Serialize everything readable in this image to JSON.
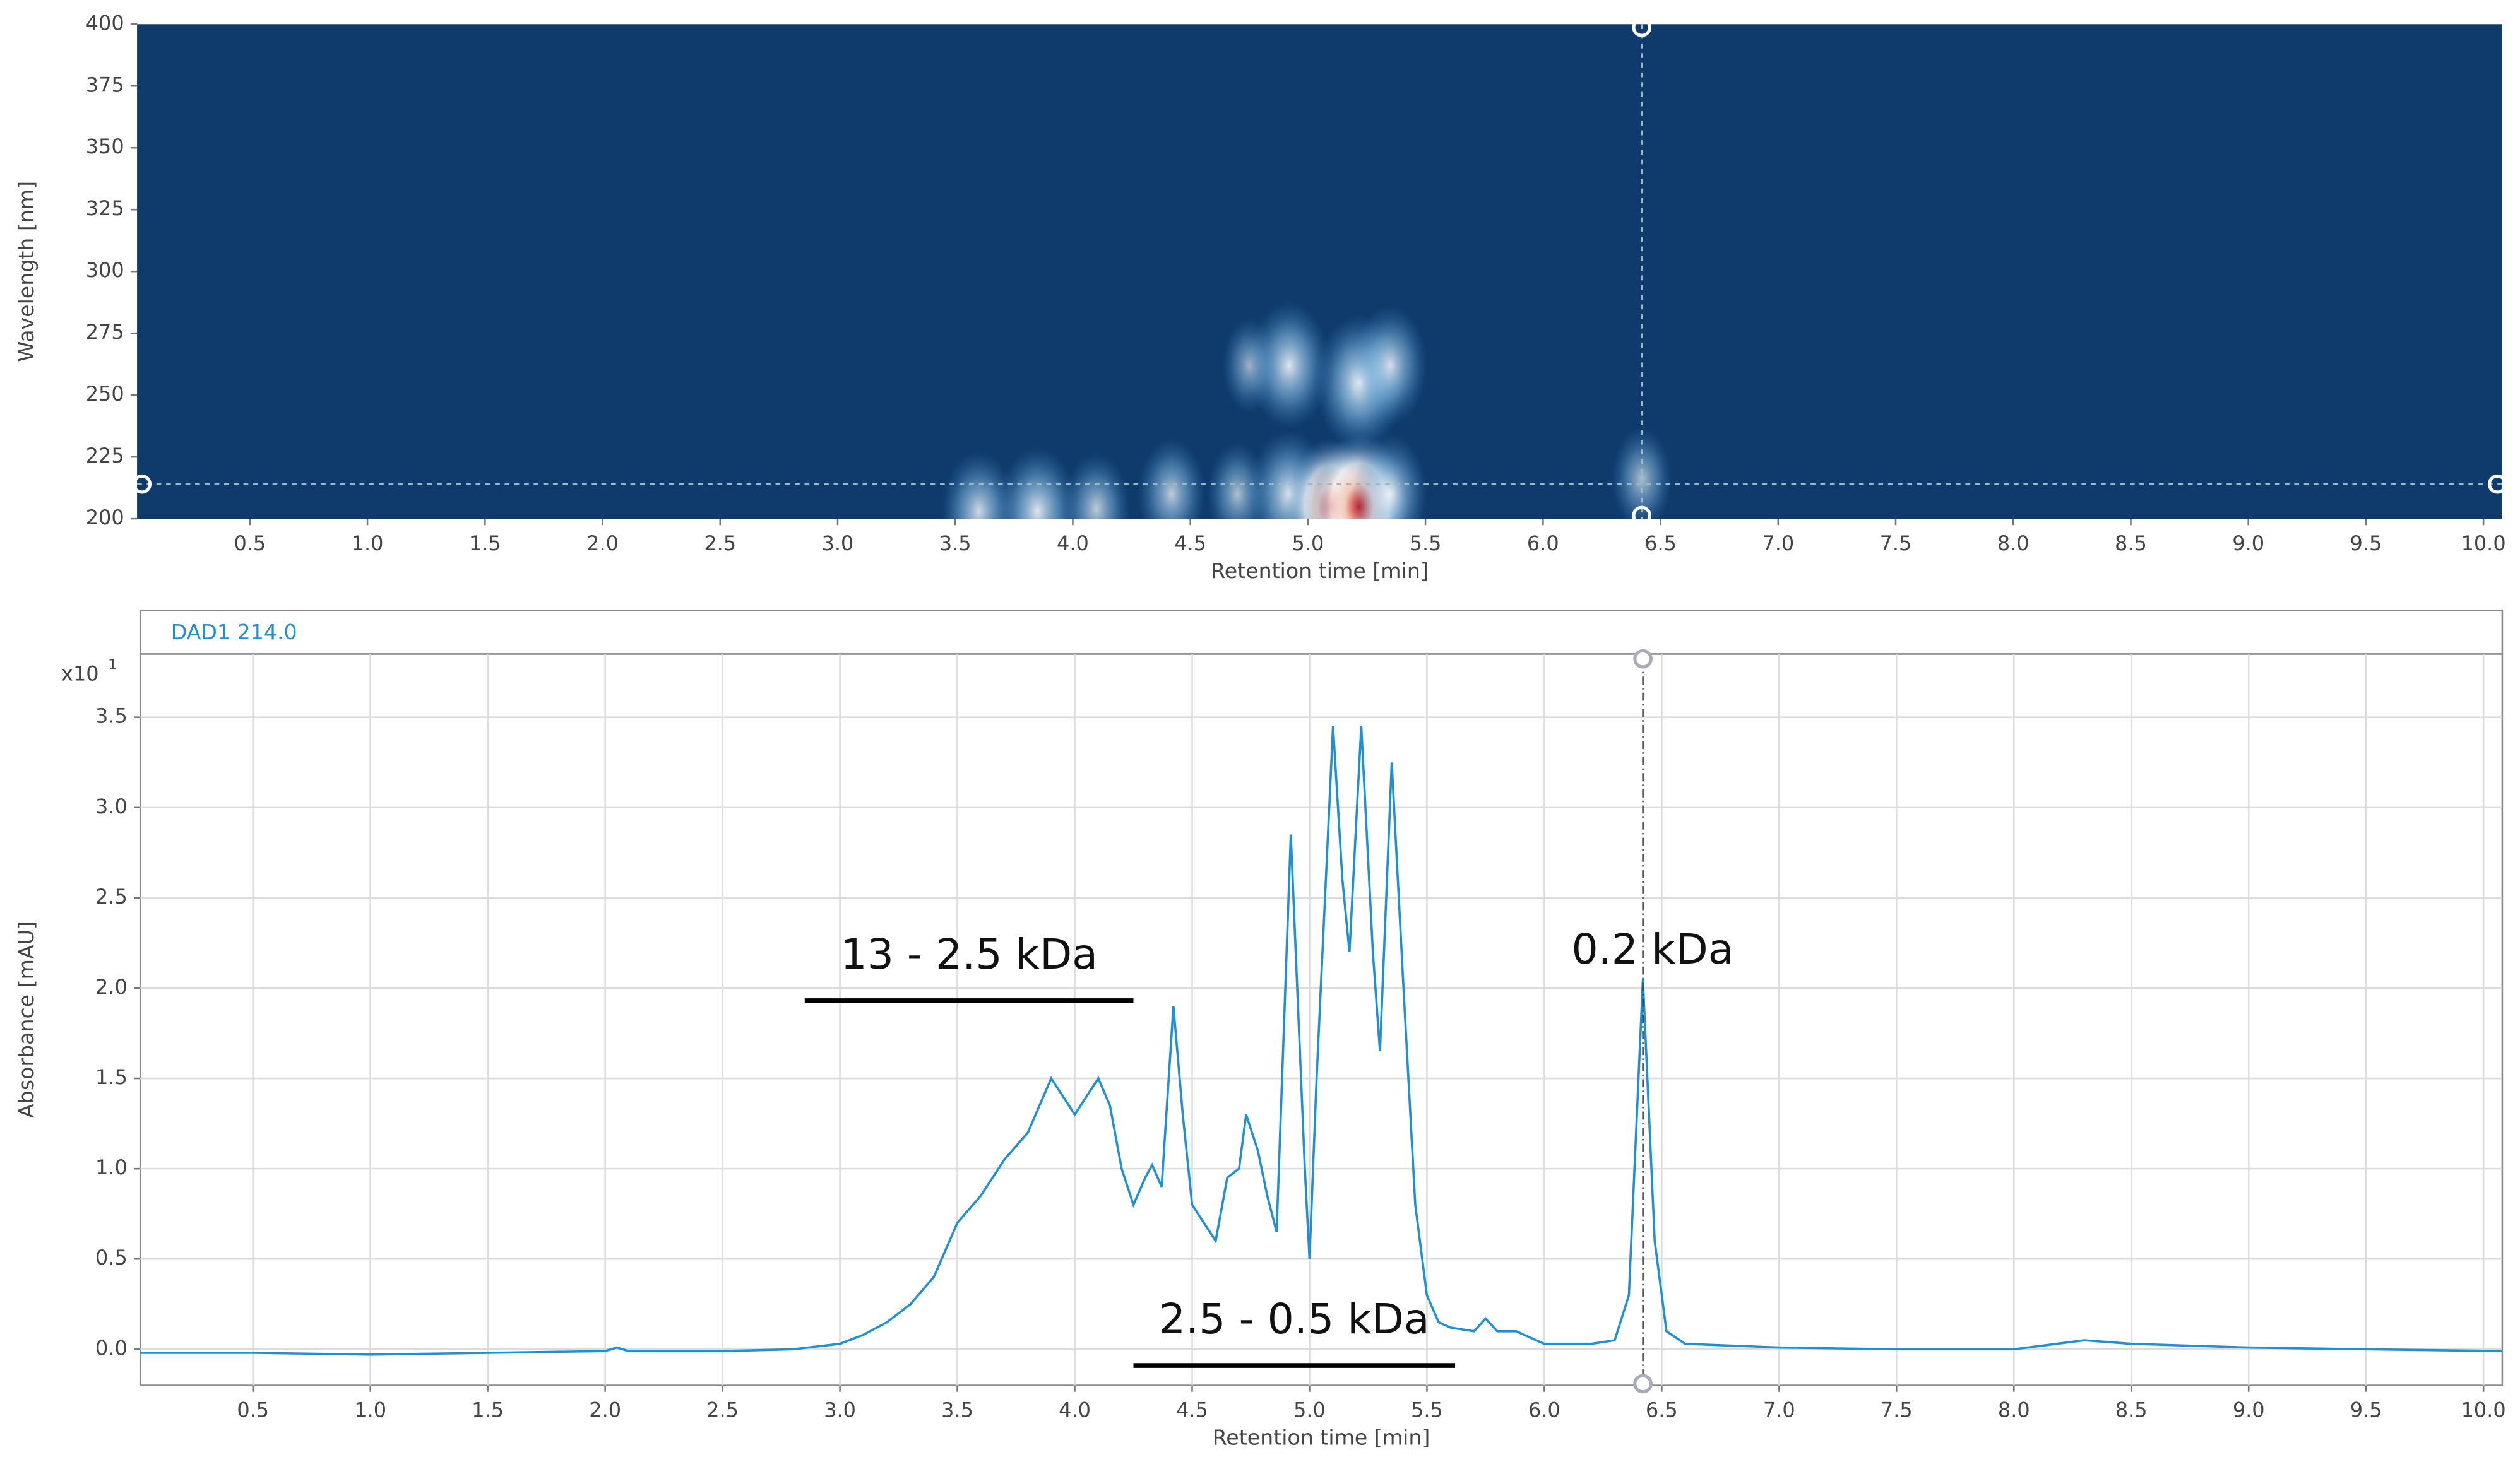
{
  "chart_data": [
    {
      "type": "heatmap",
      "x_label": "Retention time [min]",
      "y_label": "Wavelength [nm]",
      "xlim": [
        0.02,
        10.08
      ],
      "ylim": [
        200,
        400
      ],
      "xticks": [
        0.5,
        {
          "value": 1,
          "label": "1.0"
        },
        1.5,
        {
          "value": 2,
          "label": "2.0"
        },
        2.5,
        {
          "value": 3,
          "label": "3.0"
        },
        3.5,
        {
          "value": 4,
          "label": "4.0"
        },
        4.5,
        {
          "value": 5,
          "label": "5.0"
        },
        5.5,
        {
          "value": 6,
          "label": "6.0"
        },
        6.5,
        {
          "value": 7,
          "label": "7.0"
        },
        7.5,
        {
          "value": 8,
          "label": "8.0"
        },
        8.5,
        {
          "value": 9,
          "label": "9.0"
        },
        9.5,
        {
          "value": 10,
          "label": "10.0"
        }
      ],
      "yticks": [
        200,
        225,
        250,
        275,
        300,
        325,
        350,
        375,
        400
      ],
      "background": "#0e3a6c",
      "cursor_x": 6.42,
      "cursor_y": 214,
      "spots": [
        {
          "x": 3.6,
          "y": 203,
          "intensity": 0.7
        },
        {
          "x": 3.85,
          "y": 203,
          "intensity": 0.8
        },
        {
          "x": 4.1,
          "y": 204,
          "intensity": 0.6
        },
        {
          "x": 4.42,
          "y": 210,
          "intensity": 0.6
        },
        {
          "x": 4.7,
          "y": 210,
          "intensity": 0.5
        },
        {
          "x": 4.92,
          "y": 262,
          "intensity": 0.8
        },
        {
          "x": 4.92,
          "y": 210,
          "intensity": 0.8
        },
        {
          "x": 4.75,
          "y": 262,
          "intensity": 0.4
        },
        {
          "x": 5.1,
          "y": 205,
          "intensity": 0.9
        },
        {
          "x": 5.22,
          "y": 255,
          "intensity": 0.9
        },
        {
          "x": 5.22,
          "y": 205,
          "intensity": 1.0
        },
        {
          "x": 5.35,
          "y": 262,
          "intensity": 0.7
        },
        {
          "x": 5.35,
          "y": 210,
          "intensity": 0.7
        },
        {
          "x": 6.42,
          "y": 216,
          "intensity": 0.5
        }
      ]
    },
    {
      "type": "line",
      "header": "DAD1 214.0",
      "x_label": "Retention time [min]",
      "y_label": "Absorbance [mAU]",
      "multiplier": "x10",
      "multiplier_exp": "1",
      "xlim": [
        0.02,
        10.08
      ],
      "ylim": [
        -0.2,
        3.85
      ],
      "xticks": [
        0.5,
        {
          "value": 1,
          "label": "1.0"
        },
        1.5,
        {
          "value": 2,
          "label": "2.0"
        },
        2.5,
        {
          "value": 3,
          "label": "3.0"
        },
        3.5,
        {
          "value": 4,
          "label": "4.0"
        },
        4.5,
        {
          "value": 5,
          "label": "5.0"
        },
        5.5,
        {
          "value": 6,
          "label": "6.0"
        },
        6.5,
        {
          "value": 7,
          "label": "7.0"
        },
        7.5,
        {
          "value": 8,
          "label": "8.0"
        },
        8.5,
        {
          "value": 9,
          "label": "9.0"
        },
        9.5,
        {
          "value": 10,
          "label": "10.0"
        }
      ],
      "yticks": [
        {
          "value": 0,
          "label": "0.0"
        },
        0.5,
        {
          "value": 1,
          "label": "1.0"
        },
        1.5,
        {
          "value": 2,
          "label": "2.0"
        },
        2.5,
        {
          "value": 3,
          "label": "3.0"
        },
        3.5
      ],
      "grid": true,
      "color": "#1f8fd6",
      "cursor_x": 6.42,
      "x": [
        0.02,
        0.5,
        1.0,
        1.5,
        2.0,
        2.05,
        2.1,
        2.5,
        2.8,
        3.0,
        3.1,
        3.2,
        3.3,
        3.4,
        3.5,
        3.6,
        3.7,
        3.8,
        3.9,
        3.95,
        4.0,
        4.1,
        4.15,
        4.2,
        4.25,
        4.3,
        4.33,
        4.37,
        4.42,
        4.46,
        4.5,
        4.55,
        4.6,
        4.65,
        4.7,
        4.73,
        4.78,
        4.82,
        4.86,
        4.92,
        4.98,
        5.0,
        5.03,
        5.1,
        5.14,
        5.17,
        5.22,
        5.27,
        5.3,
        5.35,
        5.4,
        5.45,
        5.5,
        5.55,
        5.6,
        5.7,
        5.75,
        5.8,
        5.88,
        6.0,
        6.2,
        6.3,
        6.36,
        6.42,
        6.47,
        6.52,
        6.6,
        7.0,
        7.5,
        8.0,
        8.3,
        8.5,
        9.0,
        9.5,
        10.08
      ],
      "values": [
        -0.02,
        -0.02,
        -0.03,
        -0.02,
        -0.01,
        0.01,
        -0.01,
        -0.01,
        0.0,
        0.03,
        0.08,
        0.15,
        0.25,
        0.4,
        0.7,
        0.85,
        1.05,
        1.2,
        1.5,
        1.4,
        1.3,
        1.5,
        1.35,
        1.0,
        0.8,
        0.95,
        1.02,
        0.9,
        1.9,
        1.3,
        0.8,
        0.7,
        0.6,
        0.95,
        1.0,
        1.3,
        1.1,
        0.85,
        0.65,
        2.85,
        1.0,
        0.5,
        1.5,
        3.45,
        2.6,
        2.2,
        3.45,
        2.2,
        1.65,
        3.25,
        2.0,
        0.8,
        0.3,
        0.15,
        0.12,
        0.1,
        0.17,
        0.1,
        0.1,
        0.03,
        0.03,
        0.05,
        0.3,
        2.05,
        0.6,
        0.1,
        0.03,
        0.01,
        0.0,
        0.0,
        0.05,
        0.03,
        0.01,
        0.0,
        -0.01
      ],
      "annotations": [
        {
          "text": "13  - 2.5 kDa",
          "x": [
            2.85,
            4.25
          ],
          "y": 1.93
        },
        {
          "text": "2.5 - 0.5 kDa",
          "x": [
            4.25,
            5.62
          ],
          "y": -0.09
        },
        {
          "text": "0.2 kDa",
          "x": [
            6.42
          ],
          "y": 2.2
        }
      ]
    }
  ]
}
